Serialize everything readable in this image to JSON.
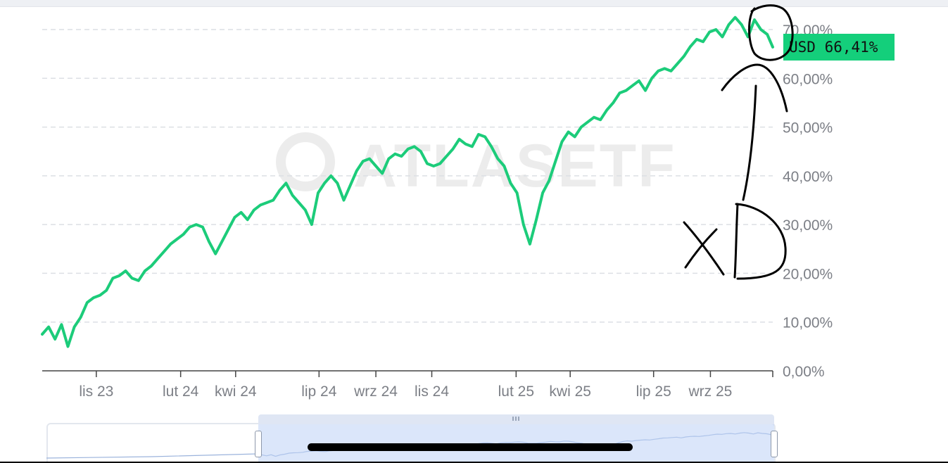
{
  "badge": {
    "label": "USD 66,41%",
    "color": "#14cf7b"
  },
  "watermark": {
    "text": "ATLASETF"
  },
  "handwriting": {
    "text": "XD"
  },
  "chart_data": {
    "type": "line",
    "title": "",
    "xlabel": "",
    "ylabel": "",
    "y_unit": "%",
    "ylim": [
      0,
      70
    ],
    "yticks": [
      0,
      10,
      20,
      30,
      40,
      50,
      60,
      70
    ],
    "ytick_labels": [
      "0,00%",
      "10,00%",
      "20,00%",
      "30,00%",
      "40,00%",
      "50,00%",
      "60,00%",
      "70,00%"
    ],
    "x_range": [
      "2023-09-03",
      "2025-11-08"
    ],
    "xticks": [
      "2023-11-01",
      "2024-02-01",
      "2024-04-01",
      "2024-07-01",
      "2024-09-01",
      "2024-11-01",
      "2025-02-01",
      "2025-04-01",
      "2025-07-01",
      "2025-09-01"
    ],
    "xtick_labels": [
      "lis 23",
      "lut 24",
      "kwi 24",
      "lip 24",
      "wrz 24",
      "lis 24",
      "lut 25",
      "kwi 25",
      "lip 25",
      "wrz 25"
    ],
    "grid": "horizontal-dashed",
    "line_color": "#1ccc7a",
    "series": [
      {
        "name": "USD",
        "x": [
          "2023-09-03",
          "2023-09-10",
          "2023-09-17",
          "2023-09-24",
          "2023-10-01",
          "2023-10-08",
          "2023-10-15",
          "2023-10-22",
          "2023-10-29",
          "2023-11-05",
          "2023-11-12",
          "2023-11-19",
          "2023-11-26",
          "2023-12-03",
          "2023-12-10",
          "2023-12-17",
          "2023-12-24",
          "2023-12-31",
          "2024-01-07",
          "2024-01-14",
          "2024-01-21",
          "2024-01-28",
          "2024-02-04",
          "2024-02-11",
          "2024-02-18",
          "2024-02-25",
          "2024-03-03",
          "2024-03-10",
          "2024-03-17",
          "2024-03-24",
          "2024-03-31",
          "2024-04-07",
          "2024-04-14",
          "2024-04-21",
          "2024-04-28",
          "2024-05-05",
          "2024-05-12",
          "2024-05-19",
          "2024-05-26",
          "2024-06-02",
          "2024-06-09",
          "2024-06-16",
          "2024-06-23",
          "2024-06-30",
          "2024-07-07",
          "2024-07-14",
          "2024-07-21",
          "2024-07-28",
          "2024-08-04",
          "2024-08-11",
          "2024-08-18",
          "2024-08-25",
          "2024-09-01",
          "2024-09-08",
          "2024-09-15",
          "2024-09-22",
          "2024-09-29",
          "2024-10-06",
          "2024-10-13",
          "2024-10-20",
          "2024-10-27",
          "2024-11-03",
          "2024-11-10",
          "2024-11-17",
          "2024-11-24",
          "2024-12-01",
          "2024-12-08",
          "2024-12-15",
          "2024-12-22",
          "2024-12-29",
          "2025-01-05",
          "2025-01-12",
          "2025-01-19",
          "2025-01-26",
          "2025-02-02",
          "2025-02-09",
          "2025-02-16",
          "2025-02-23",
          "2025-03-02",
          "2025-03-09",
          "2025-03-16",
          "2025-03-23",
          "2025-03-30",
          "2025-04-06",
          "2025-04-13",
          "2025-04-20",
          "2025-04-27",
          "2025-05-04",
          "2025-05-11",
          "2025-05-18",
          "2025-05-25",
          "2025-06-01",
          "2025-06-08",
          "2025-06-15",
          "2025-06-22",
          "2025-06-29",
          "2025-07-06",
          "2025-07-13",
          "2025-07-20",
          "2025-07-27",
          "2025-08-03",
          "2025-08-10",
          "2025-08-17",
          "2025-08-24",
          "2025-08-31",
          "2025-09-07",
          "2025-09-14",
          "2025-09-21",
          "2025-09-28",
          "2025-10-05",
          "2025-10-12",
          "2025-10-19",
          "2025-10-26",
          "2025-11-02",
          "2025-11-08"
        ],
        "y": [
          7.5,
          9.0,
          6.5,
          9.5,
          5.0,
          9.0,
          11.0,
          14.0,
          15.0,
          15.5,
          16.5,
          19.0,
          19.5,
          20.5,
          19.0,
          18.5,
          20.5,
          21.5,
          23.0,
          24.5,
          26.0,
          27.0,
          28.0,
          29.5,
          30.0,
          29.5,
          26.5,
          24.0,
          26.5,
          29.0,
          31.5,
          32.5,
          31.0,
          33.0,
          34.0,
          34.5,
          35.0,
          37.0,
          38.5,
          36.0,
          34.5,
          33.0,
          30.0,
          36.5,
          38.5,
          40.0,
          38.5,
          35.0,
          38.0,
          41.0,
          43.0,
          43.5,
          42.0,
          40.5,
          43.5,
          44.5,
          44.0,
          45.5,
          46.0,
          45.0,
          42.5,
          42.0,
          42.5,
          44.0,
          45.5,
          47.5,
          46.5,
          46.0,
          48.5,
          48.0,
          46.0,
          43.5,
          42.0,
          38.5,
          36.5,
          30.0,
          26.0,
          31.0,
          36.5,
          39.0,
          43.0,
          47.0,
          49.0,
          48.0,
          50.0,
          51.0,
          52.0,
          51.5,
          53.5,
          55.0,
          57.0,
          57.5,
          58.5,
          59.5,
          57.5,
          60.0,
          61.5,
          62.0,
          61.5,
          63.0,
          64.5,
          66.5,
          68.0,
          67.5,
          69.5,
          70.0,
          68.5,
          71.0,
          72.5,
          71.0,
          68.5,
          72.0,
          70.0,
          69.0,
          66.41
        ]
      }
    ]
  }
}
